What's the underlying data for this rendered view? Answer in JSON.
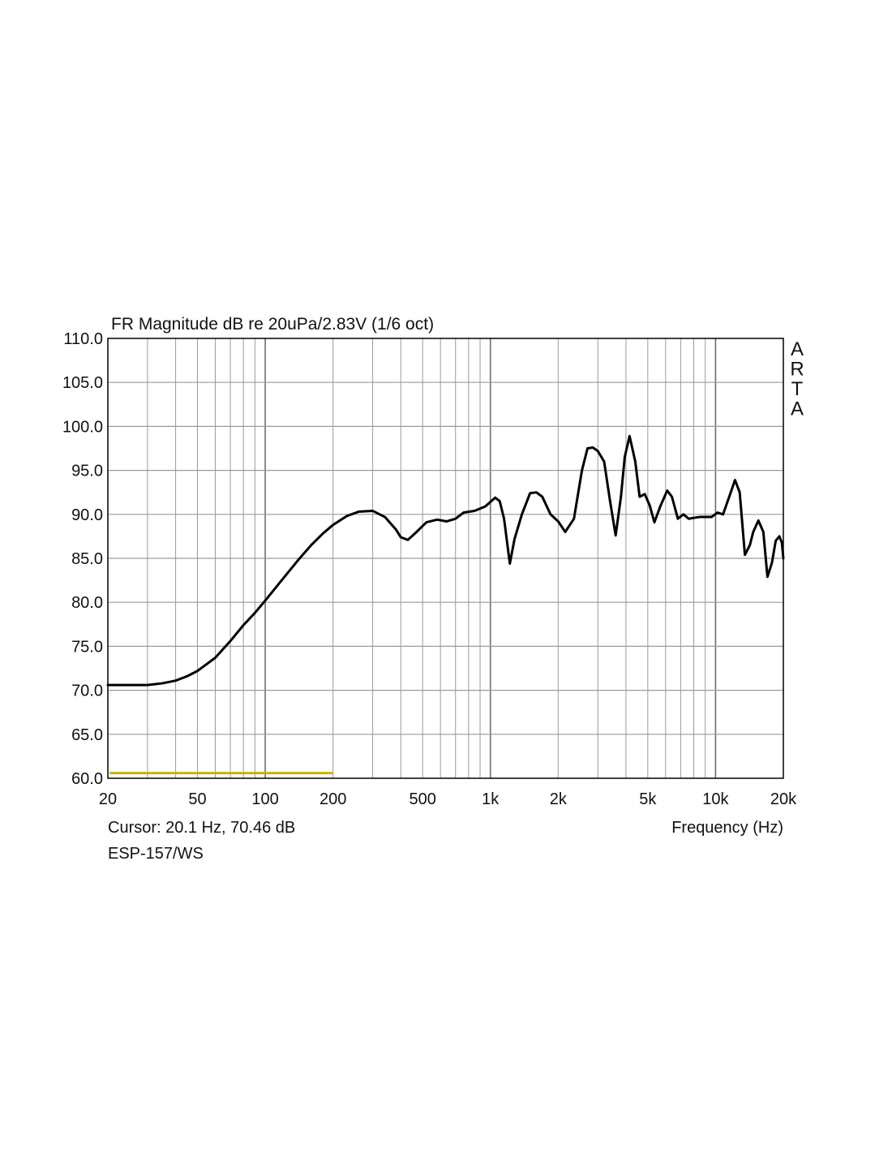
{
  "chart_data": {
    "type": "line",
    "title": "FR Magnitude dB re 20uPa/2.83V (1/6 oct)",
    "xlabel": "Frequency (Hz)",
    "ylabel": "",
    "xscale": "log",
    "xlim": [
      20,
      20000
    ],
    "ylim": [
      60,
      110
    ],
    "grid": true,
    "x_ticks": [
      {
        "value": 20,
        "label": "20"
      },
      {
        "value": 50,
        "label": "50"
      },
      {
        "value": 100,
        "label": "100"
      },
      {
        "value": 200,
        "label": "200"
      },
      {
        "value": 500,
        "label": "500"
      },
      {
        "value": 1000,
        "label": "1k"
      },
      {
        "value": 2000,
        "label": "2k"
      },
      {
        "value": 5000,
        "label": "5k"
      },
      {
        "value": 10000,
        "label": "10k"
      },
      {
        "value": 20000,
        "label": "20k"
      }
    ],
    "y_ticks": [
      {
        "value": 60,
        "label": "60.0"
      },
      {
        "value": 65,
        "label": "65.0"
      },
      {
        "value": 70,
        "label": "70.0"
      },
      {
        "value": 75,
        "label": "75.0"
      },
      {
        "value": 80,
        "label": "80.0"
      },
      {
        "value": 85,
        "label": "85.0"
      },
      {
        "value": 90,
        "label": "90.0"
      },
      {
        "value": 95,
        "label": "95.0"
      },
      {
        "value": 100,
        "label": "100.0"
      },
      {
        "value": 105,
        "label": "105.0"
      },
      {
        "value": 110,
        "label": "110.0"
      }
    ],
    "watermark": [
      "A",
      "R",
      "T",
      "A"
    ],
    "cursor_text": "Cursor: 20.1 Hz, 70.46 dB",
    "device_label": "ESP-157/WS",
    "colors": {
      "curve": "#000000",
      "grid": "#9a9a9a",
      "frame": "#000000",
      "range_marker": "#c8b400"
    },
    "range_marker": {
      "x": [
        20,
        200
      ],
      "y": 60.5
    },
    "series": [
      {
        "x": [
          20,
          25,
          30,
          35,
          40,
          45,
          50,
          60,
          70,
          80,
          90,
          100,
          120,
          140,
          160,
          180,
          200,
          230,
          260,
          300,
          340,
          380,
          400,
          430,
          470,
          520,
          580,
          640,
          700,
          760,
          850,
          950,
          1050,
          1100,
          1150,
          1220,
          1280,
          1380,
          1500,
          1600,
          1700,
          1850,
          2000,
          2150,
          2350,
          2550,
          2700,
          2850,
          3000,
          3200,
          3400,
          3600,
          3800,
          3950,
          4150,
          4400,
          4600,
          4850,
          5100,
          5350,
          5700,
          6100,
          6400,
          6800,
          7200,
          7600,
          8000,
          8500,
          9000,
          9600,
          10200,
          10800,
          11500,
          12200,
          12800,
          13500,
          14200,
          14700,
          15500,
          16300,
          17000,
          17800,
          18500,
          19200,
          19700,
          20000
        ],
        "y": [
          70.6,
          70.6,
          70.6,
          70.8,
          71.1,
          71.6,
          72.2,
          73.7,
          75.6,
          77.4,
          78.8,
          80.2,
          82.7,
          84.8,
          86.5,
          87.8,
          88.8,
          89.8,
          90.3,
          90.4,
          89.7,
          88.3,
          87.4,
          87.1,
          88.0,
          89.1,
          89.4,
          89.2,
          89.5,
          90.2,
          90.4,
          90.9,
          91.9,
          91.5,
          89.5,
          84.4,
          87.2,
          90.0,
          92.4,
          92.5,
          92.0,
          90.0,
          89.2,
          88.0,
          89.5,
          95.0,
          97.5,
          97.6,
          97.2,
          96.0,
          91.5,
          87.6,
          92.0,
          96.5,
          98.9,
          96.0,
          92.0,
          92.3,
          91.0,
          89.1,
          91.0,
          92.7,
          92.0,
          89.5,
          90.0,
          89.5,
          89.6,
          89.7,
          89.7,
          89.7,
          90.2,
          90.0,
          92.0,
          93.9,
          92.5,
          85.4,
          86.5,
          88.0,
          89.3,
          88.0,
          82.9,
          84.5,
          87.0,
          87.5,
          86.8,
          85.0
        ]
      }
    ]
  }
}
